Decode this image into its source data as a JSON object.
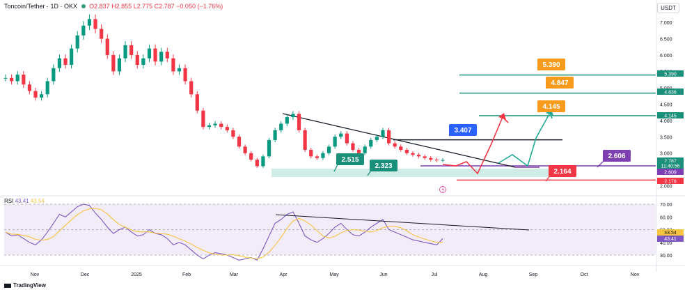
{
  "header": {
    "symbol": "Toncoin/Tether · 1D · OKX",
    "ohlc": "O2.837 H2.855 L2.775 C2.787 −0.050 (−1.76%)"
  },
  "unit": "USDT",
  "rsi_header": {
    "label": "RSI",
    "value1": "43.41",
    "value2": "43.54"
  },
  "branding": "TradingView",
  "chart_data": {
    "type": "line",
    "x_axis_labels": [
      "Nov",
      "Dec",
      "2025",
      "Feb",
      "Mar",
      "Apr",
      "May",
      "Jun",
      "Jul",
      "Aug",
      "Sep",
      "Oct",
      "Nov"
    ],
    "y_ticks": [
      "7.000",
      "6.500",
      "6.000",
      "5.500",
      "5.000",
      "4.500",
      "4.000",
      "3.500",
      "3.000",
      "2.500",
      "2.000"
    ],
    "price_labels": [
      {
        "text": "5.390",
        "color": "#1a8f7a"
      },
      {
        "text": "4.836",
        "color": "#1a8f7a"
      },
      {
        "text": "4.145",
        "color": "#1a8f7a"
      },
      {
        "text": "2.787",
        "color": "#1a8f7a"
      },
      {
        "text": "11:40:56",
        "color": "#1a8f7a"
      },
      {
        "text": "2.609",
        "color": "#7e3fb2"
      },
      {
        "text": "2.176",
        "color": "#f23645"
      }
    ],
    "levels": [
      {
        "value": 5.39,
        "color": "#1a8f7a"
      },
      {
        "value": 4.836,
        "color": "#1a8f7a"
      },
      {
        "value": 4.145,
        "color": "#1a8f7a"
      },
      {
        "value": 3.407,
        "color": "#131722"
      },
      {
        "value": 2.609,
        "color": "#7e3fb2"
      },
      {
        "value": 2.176,
        "color": "#f23645"
      }
    ],
    "callouts": [
      {
        "text": "5.390",
        "color": "#f89b1c"
      },
      {
        "text": "4.847",
        "color": "#f89b1c"
      },
      {
        "text": "4.145",
        "color": "#f89b1c"
      },
      {
        "text": "3.407",
        "color": "#2962ff"
      },
      {
        "text": "2.515",
        "color": "#1a8f7a"
      },
      {
        "text": "2.323",
        "color": "#1a8f7a"
      },
      {
        "text": "2.606",
        "color": "#7e3fb2"
      },
      {
        "text": "2.164",
        "color": "#f23645"
      }
    ],
    "price_series": [
      5.3,
      5.2,
      5.4,
      5.1,
      4.9,
      4.7,
      4.8,
      5.2,
      5.6,
      5.9,
      5.7,
      6.2,
      6.6,
      6.9,
      7.1,
      6.8,
      6.5,
      6.0,
      5.5,
      5.9,
      6.3,
      6.0,
      5.7,
      5.9,
      6.2,
      5.8,
      6.1,
      5.9,
      5.5,
      5.6,
      5.2,
      4.8,
      4.3,
      3.8,
      3.85,
      3.9,
      3.8,
      3.7,
      3.5,
      3.2,
      3.0,
      2.8,
      2.6,
      2.9,
      3.4,
      3.7,
      3.9,
      4.1,
      4.2,
      3.7,
      3.1,
      2.9,
      2.85,
      3.0,
      3.2,
      3.5,
      3.6,
      3.3,
      3.1,
      3.0,
      3.2,
      3.4,
      3.5,
      3.7,
      3.3,
      3.2,
      3.1,
      3.0,
      2.95,
      2.9,
      2.85,
      2.8,
      2.78,
      2.79
    ],
    "rsi_range": [
      30,
      70
    ],
    "rsi_ticks": [
      "70.00",
      "60.00",
      "50.00",
      "40.00",
      "30.00"
    ],
    "rsi_series": [
      48,
      45,
      46,
      43,
      40,
      38,
      42,
      48,
      55,
      62,
      60,
      64,
      68,
      70,
      69,
      63,
      58,
      52,
      47,
      50,
      52,
      48,
      45,
      46,
      50,
      47,
      46,
      43,
      38,
      40,
      38,
      34,
      30,
      27,
      30,
      32,
      31,
      30,
      28,
      26,
      27,
      28,
      26,
      35,
      45,
      55,
      58,
      62,
      64,
      55,
      45,
      42,
      40,
      43,
      47,
      52,
      55,
      50,
      46,
      45,
      48,
      52,
      55,
      58,
      50,
      48,
      46,
      44,
      42,
      41,
      40,
      39,
      38,
      43
    ]
  }
}
